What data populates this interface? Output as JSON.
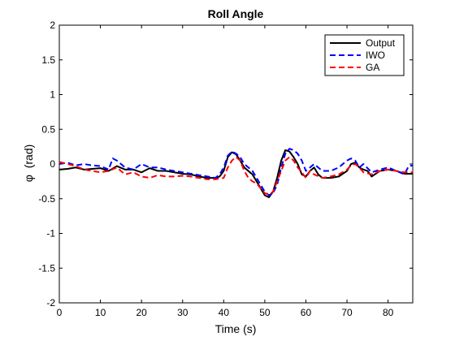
{
  "chart_data": {
    "type": "line",
    "title": "Roll Angle",
    "xlabel": "Time (s)",
    "ylabel_symbol": "φ",
    "ylabel_unit": "(rad)",
    "xlim": [
      0,
      86
    ],
    "ylim": [
      -2,
      2
    ],
    "xticks": [
      0,
      10,
      20,
      30,
      40,
      50,
      60,
      70,
      80
    ],
    "yticks": [
      -2,
      -1.5,
      -1,
      -0.5,
      0,
      0.5,
      1,
      1.5,
      2
    ],
    "grid": false,
    "legend_position": "top-right",
    "series": [
      {
        "name": "Output",
        "color": "#000000",
        "style": "solid",
        "x": [
          0,
          2,
          4,
          6,
          8,
          10,
          12,
          14,
          16,
          18,
          20,
          22,
          24,
          26,
          28,
          30,
          32,
          34,
          36,
          38,
          39,
          40,
          41,
          42,
          43,
          44,
          45,
          46,
          47,
          48,
          49,
          50,
          51,
          52,
          53,
          54,
          55,
          56,
          57,
          58,
          59,
          60,
          61,
          62,
          63,
          64,
          66,
          68,
          70,
          71,
          72,
          73,
          74,
          75,
          76,
          78,
          80,
          82,
          84,
          86
        ],
        "values": [
          -0.08,
          -0.07,
          -0.05,
          -0.08,
          -0.07,
          -0.06,
          -0.1,
          -0.03,
          -0.08,
          -0.08,
          -0.12,
          -0.06,
          -0.1,
          -0.1,
          -0.12,
          -0.14,
          -0.15,
          -0.18,
          -0.2,
          -0.2,
          -0.18,
          -0.1,
          0.1,
          0.17,
          0.14,
          0.05,
          -0.05,
          -0.1,
          -0.15,
          -0.25,
          -0.35,
          -0.45,
          -0.48,
          -0.4,
          -0.2,
          0.05,
          0.2,
          0.18,
          0.1,
          0.0,
          -0.15,
          -0.18,
          -0.1,
          -0.05,
          -0.15,
          -0.2,
          -0.2,
          -0.18,
          -0.1,
          0.0,
          0.02,
          -0.05,
          -0.08,
          -0.1,
          -0.18,
          -0.1,
          -0.08,
          -0.1,
          -0.14,
          -0.14
        ]
      },
      {
        "name": "IWO",
        "color": "#0000ff",
        "style": "dashed",
        "x": [
          0,
          2,
          4,
          6,
          8,
          10,
          12,
          13,
          14,
          16,
          18,
          20,
          22,
          24,
          26,
          28,
          30,
          32,
          34,
          36,
          38,
          39,
          40,
          41,
          42,
          43,
          44,
          45,
          46,
          47,
          48,
          49,
          50,
          51,
          52,
          53,
          54,
          55,
          56,
          57,
          58,
          59,
          60,
          61,
          62,
          64,
          66,
          68,
          70,
          71,
          72,
          73,
          74,
          76,
          78,
          80,
          82,
          84,
          85,
          86
        ],
        "values": [
          0.0,
          0.02,
          -0.02,
          0.0,
          -0.02,
          -0.03,
          -0.08,
          0.08,
          0.05,
          -0.05,
          -0.08,
          0.0,
          -0.05,
          -0.05,
          -0.08,
          -0.1,
          -0.12,
          -0.14,
          -0.16,
          -0.18,
          -0.2,
          -0.15,
          -0.05,
          0.12,
          0.18,
          0.15,
          0.1,
          0.0,
          -0.05,
          -0.1,
          -0.2,
          -0.3,
          -0.4,
          -0.45,
          -0.42,
          -0.3,
          -0.05,
          0.15,
          0.22,
          0.2,
          0.15,
          0.05,
          -0.1,
          -0.05,
          0.0,
          -0.1,
          -0.1,
          -0.05,
          0.05,
          0.08,
          0.05,
          -0.05,
          0.0,
          -0.12,
          -0.08,
          -0.05,
          -0.1,
          -0.15,
          -0.03,
          -0.02
        ]
      },
      {
        "name": "GA",
        "color": "#ff0000",
        "style": "dashed",
        "x": [
          0,
          2,
          4,
          6,
          8,
          10,
          12,
          14,
          16,
          18,
          20,
          22,
          24,
          26,
          28,
          30,
          32,
          34,
          36,
          38,
          40,
          41,
          42,
          43,
          44,
          45,
          46,
          47,
          48,
          49,
          50,
          51,
          52,
          53,
          54,
          55,
          56,
          57,
          58,
          59,
          60,
          61,
          62,
          64,
          66,
          68,
          70,
          71,
          72,
          73,
          74,
          76,
          78,
          80,
          82,
          84,
          86
        ],
        "values": [
          0.03,
          0.0,
          -0.03,
          -0.08,
          -0.1,
          -0.12,
          -0.1,
          -0.05,
          -0.15,
          -0.12,
          -0.18,
          -0.2,
          -0.16,
          -0.18,
          -0.18,
          -0.17,
          -0.18,
          -0.2,
          -0.22,
          -0.22,
          -0.2,
          -0.05,
          0.05,
          0.1,
          0.05,
          -0.1,
          -0.2,
          -0.25,
          -0.28,
          -0.35,
          -0.42,
          -0.44,
          -0.4,
          -0.25,
          -0.1,
          0.05,
          0.1,
          0.05,
          -0.05,
          -0.12,
          -0.2,
          -0.1,
          -0.15,
          -0.2,
          -0.18,
          -0.15,
          -0.08,
          -0.02,
          0.0,
          -0.05,
          -0.12,
          -0.15,
          -0.1,
          -0.08,
          -0.1,
          -0.12,
          -0.12
        ]
      }
    ]
  }
}
